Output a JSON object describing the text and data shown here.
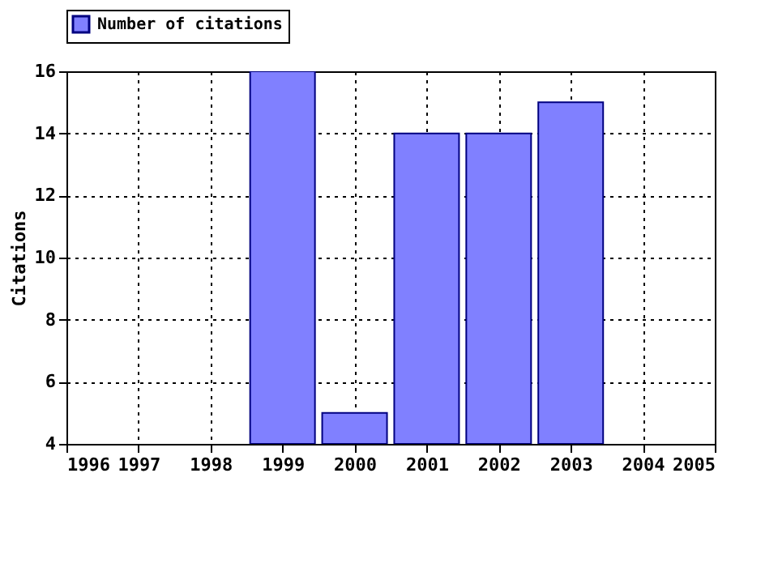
{
  "chart_data": {
    "type": "bar",
    "ylabel": "Citations",
    "x": [
      1999,
      2000,
      2001,
      2002,
      2003
    ],
    "series": [
      {
        "name": "Number of citations",
        "color": "#8080ff",
        "values": [
          16,
          5,
          14,
          14,
          15
        ]
      }
    ],
    "xlim": [
      1996,
      2005
    ],
    "xticks": [
      1996,
      1997,
      1998,
      1999,
      2000,
      2001,
      2002,
      2003,
      2004,
      2005
    ],
    "ylim": [
      4,
      16
    ],
    "yticks": [
      4,
      6,
      8,
      10,
      12,
      14,
      16
    ],
    "grid": true,
    "legend": "top left"
  }
}
